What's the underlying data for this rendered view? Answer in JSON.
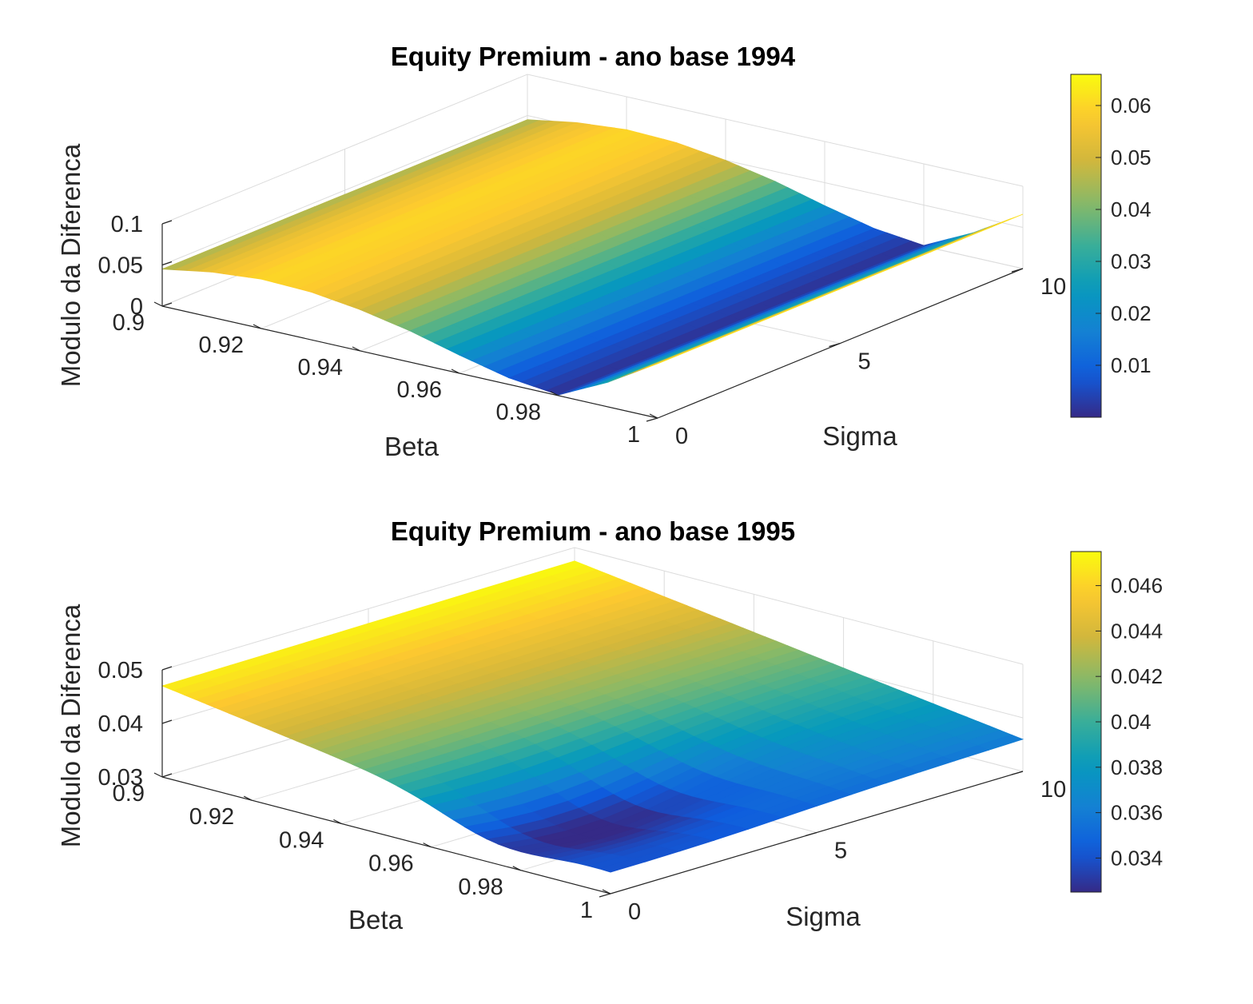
{
  "chart_data": [
    {
      "type": "surface",
      "title": "Equity Premium - ano base 1994",
      "xlabel": "Beta",
      "ylabel": "Sigma",
      "zlabel": "Modulo da Diferenca",
      "xlim": [
        0.9,
        1
      ],
      "ylim": [
        0,
        10
      ],
      "zlim": [
        0,
        0.1
      ],
      "xticks": [
        "0.9",
        "0.92",
        "0.94",
        "0.96",
        "0.98",
        "1"
      ],
      "yticks": [
        "0",
        "5",
        "10"
      ],
      "zticks": [
        "0",
        "0.05",
        "0.1"
      ],
      "colorbar": {
        "ticks": [
          "0.01",
          "0.02",
          "0.03",
          "0.04",
          "0.05",
          "0.06"
        ],
        "clim": [
          0.0,
          0.066
        ]
      },
      "grid": true,
      "colormap": "parula",
      "beta": [
        0.9,
        0.91,
        0.92,
        0.93,
        0.94,
        0.95,
        0.96,
        0.97,
        0.98,
        0.99,
        1.0
      ],
      "surface_profile_vs_beta": [
        0.045,
        0.055,
        0.06,
        0.058,
        0.05,
        0.038,
        0.022,
        0.008,
        0.001,
        0.03,
        0.066
      ],
      "sigma_dependence": "approximately constant"
    },
    {
      "type": "surface",
      "title": "Equity Premium - ano base 1995",
      "xlabel": "Beta",
      "ylabel": "Sigma",
      "zlabel": "Modulo da Diferenca",
      "xlim": [
        0.9,
        1
      ],
      "ylim": [
        0,
        10
      ],
      "zlim": [
        0.03,
        0.05
      ],
      "xticks": [
        "0.9",
        "0.92",
        "0.94",
        "0.96",
        "0.98",
        "1"
      ],
      "yticks": [
        "0",
        "5",
        "10"
      ],
      "zticks": [
        "0.03",
        "0.04",
        "0.05"
      ],
      "colorbar": {
        "ticks": [
          "0.034",
          "0.036",
          "0.038",
          "0.04",
          "0.042",
          "0.044",
          "0.046"
        ],
        "clim": [
          0.0325,
          0.0475
        ]
      },
      "grid": true,
      "colormap": "parula",
      "corners": [
        {
          "beta": 0.9,
          "sigma": 0,
          "value": 0.047
        },
        {
          "beta": 0.9,
          "sigma": 10,
          "value": 0.0475
        },
        {
          "beta": 1.0,
          "sigma": 0,
          "value": 0.0345
        },
        {
          "beta": 1.0,
          "sigma": 10,
          "value": 0.036
        }
      ],
      "minimum": {
        "beta": 0.975,
        "sigma": 2,
        "value": 0.0325
      }
    }
  ]
}
